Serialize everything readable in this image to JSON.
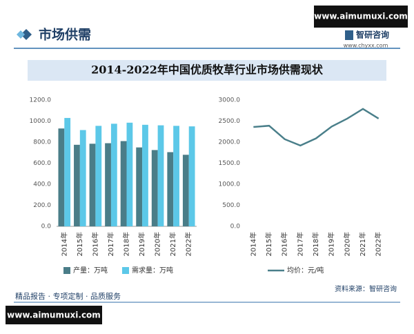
{
  "header": {
    "section": "市场供需",
    "brand": "智研咨询",
    "site": "www.chyxx.com",
    "watermark": "www.aimumuxi.com"
  },
  "title": "2014-2022年中国优质牧草行业市场供需现状",
  "chart_data": [
    {
      "type": "bar",
      "categories": [
        "2014年",
        "2015年",
        "2016年",
        "2017年",
        "2018年",
        "2019年",
        "2020年",
        "2021年",
        "2022年"
      ],
      "series": [
        {
          "name": "产量：万吨",
          "color": "#4a7d88",
          "values": [
            930,
            775,
            785,
            790,
            810,
            750,
            725,
            705,
            680
          ]
        },
        {
          "name": "需求量：万吨",
          "color": "#5cc8e8",
          "values": [
            1030,
            915,
            955,
            975,
            985,
            965,
            960,
            955,
            950
          ]
        }
      ],
      "ylim": [
        0,
        1200
      ],
      "yticks": [
        {
          "value": 0,
          "label": "0.0"
        },
        {
          "value": 200,
          "label": "200.0"
        },
        {
          "value": 400,
          "label": "400.0"
        },
        {
          "value": 600,
          "label": "600.0"
        },
        {
          "value": 800,
          "label": "800.0"
        },
        {
          "value": 1000,
          "label": "1000.0"
        },
        {
          "value": 1200,
          "label": "1200.0"
        }
      ]
    },
    {
      "type": "line",
      "categories": [
        "2014年",
        "2015年",
        "2016年",
        "2017年",
        "2018年",
        "2019年",
        "2020年",
        "2021年",
        "2022年"
      ],
      "series": [
        {
          "name": "均价：元/吨",
          "color": "#4a7f8a",
          "values": [
            2360,
            2390,
            2070,
            1920,
            2090,
            2370,
            2560,
            2790,
            2560
          ]
        }
      ],
      "ylim": [
        0,
        3000
      ],
      "yticks": [
        {
          "value": 0,
          "label": "0.0"
        },
        {
          "value": 500,
          "label": "500.0"
        },
        {
          "value": 1000,
          "label": "1000.0"
        },
        {
          "value": 1500,
          "label": "1500.0"
        },
        {
          "value": 2000,
          "label": "2000.0"
        },
        {
          "value": 2500,
          "label": "2500.0"
        },
        {
          "value": 3000,
          "label": "3000.0"
        }
      ]
    }
  ],
  "footer": {
    "tagline": "精品报告 · 专项定制 · 品质服务",
    "source": "资料来源：智研咨询"
  }
}
